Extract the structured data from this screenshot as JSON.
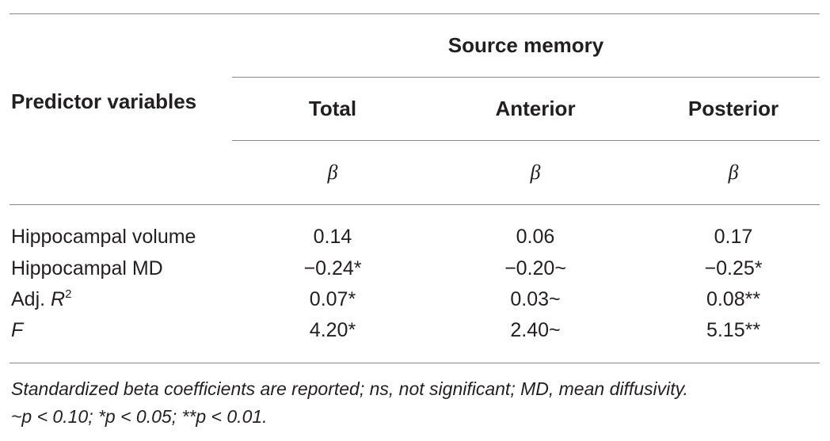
{
  "header": {
    "group_label": "Source memory",
    "row_label": "Predictor variables",
    "columns": [
      "Total",
      "Anterior",
      "Posterior"
    ],
    "coef_symbol": "β"
  },
  "rows": [
    {
      "label": "Hippocampal volume",
      "values": [
        "0.14",
        "0.06",
        "0.17"
      ]
    },
    {
      "label": "Hippocampal MD",
      "values": [
        "−0.24*",
        "−0.20~",
        "−0.25*"
      ]
    },
    {
      "label_prefix": "Adj. ",
      "label_var": "R",
      "label_sup": "2",
      "values": [
        "0.07*",
        "0.03~",
        "0.08**"
      ]
    },
    {
      "label_var": "F",
      "values": [
        "4.20*",
        "2.40~",
        "5.15**"
      ]
    }
  ],
  "footnotes": [
    "Standardized beta coefficients are reported; ns, not significant; MD, mean diffusivity.",
    "~p < 0.10; *p < 0.05; **p < 0.01."
  ]
}
